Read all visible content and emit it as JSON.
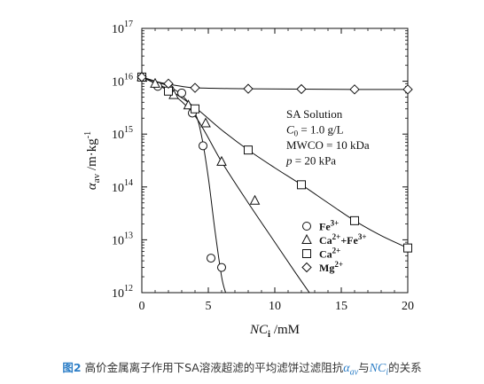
{
  "chart_data": {
    "type": "scatter",
    "xlabel": {
      "main": "NC",
      "sub": "i",
      "unit": " /mM"
    },
    "ylabel": {
      "main": "α",
      "sub": "av",
      "unit": " /m·kg",
      "sup": "-1"
    },
    "xlim": [
      0,
      20
    ],
    "ylim": [
      1000000000000.0,
      1e+17
    ],
    "yscale": "log",
    "x_ticks": [
      0,
      5,
      10,
      15,
      20
    ],
    "x_tick_labels": [
      "0",
      "5",
      "10",
      "15",
      "20"
    ],
    "y_ticks": [
      12,
      13,
      14,
      15,
      16,
      17
    ],
    "grid": false,
    "legend_position": "bottom-right",
    "annotation": [
      {
        "text": "SA Solution"
      },
      {
        "pre": "",
        "italic": "C",
        "sub": "0",
        "post": " = 1.0 g/L"
      },
      {
        "text": "MWCO = 10 kDa"
      },
      {
        "pre": "",
        "italic": "p",
        "sub": "",
        "post": " = 20 kPa"
      }
    ],
    "series": [
      {
        "name_parts": [
          [
            "Fe",
            ""
          ],
          [
            "3+",
            "sup"
          ]
        ],
        "marker": "circle",
        "x": [
          0,
          1.2,
          2.1,
          3.0,
          3.8,
          4.6,
          5.2,
          6.0
        ],
        "y": [
          1.2e+16,
          8000000000000000.0,
          7000000000000000.0,
          6000000000000000.0,
          2500000000000000.0,
          600000000000000.0,
          4500000000000.0,
          3000000000000.0
        ],
        "curve_x": [
          0,
          1,
          2,
          3,
          4,
          4.5,
          5,
          5.5,
          6.0,
          6.3
        ],
        "curve_y": [
          1.2e+16,
          1e+16,
          8000000000000000.0,
          5500000000000000.0,
          2500000000000000.0,
          900000000000000.0,
          150000000000000.0,
          15000000000000.0,
          2000000000000.0,
          1000000000000.0
        ]
      },
      {
        "name_parts": [
          [
            "Ca",
            ""
          ],
          [
            "2+",
            "sup"
          ],
          [
            "+Fe",
            ""
          ],
          [
            "3+",
            "sup"
          ]
        ],
        "marker": "triangle",
        "x": [
          0,
          1.0,
          2.4,
          3.5,
          4.8,
          6.0,
          8.5
        ],
        "y": [
          1.2e+16,
          9000000000000000.0,
          5500000000000000.0,
          3500000000000000.0,
          1600000000000000.0,
          300000000000000.0,
          55000000000000.0
        ],
        "curve_x": [
          0,
          2,
          4,
          6,
          8,
          10,
          11.5,
          12.6
        ],
        "curve_y": [
          1.2e+16,
          6500000000000000.0,
          2200000000000000.0,
          300000000000000.0,
          50000000000000.0,
          9000000000000.0,
          2500000000000.0,
          1000000000000.0
        ]
      },
      {
        "name_parts": [
          [
            "Ca",
            ""
          ],
          [
            "2+",
            "sup"
          ]
        ],
        "marker": "square",
        "x": [
          0,
          2.0,
          4.0,
          8.0,
          12.0,
          16.0,
          20.0
        ],
        "y": [
          1.2e+16,
          6500000000000000.0,
          3000000000000000.0,
          500000000000000.0,
          110000000000000.0,
          23000000000000.0,
          7000000000000.0
        ],
        "curve_x": [
          0,
          2,
          4,
          6,
          8,
          10,
          12,
          14,
          16,
          18,
          20
        ],
        "curve_y": [
          1.2e+16,
          7000000000000000.0,
          3200000000000000.0,
          1200000000000000.0,
          500000000000000.0,
          230000000000000.0,
          110000000000000.0,
          50000000000000.0,
          23000000000000.0,
          12000000000000.0,
          7000000000000.0
        ]
      },
      {
        "name_parts": [
          [
            "Mg",
            ""
          ],
          [
            "2+",
            "sup"
          ]
        ],
        "marker": "diamond",
        "x": [
          0,
          2.0,
          4.0,
          8.0,
          12.0,
          16.0,
          20.0
        ],
        "y": [
          1.2e+16,
          9000000000000000.0,
          7500000000000000.0,
          7200000000000000.0,
          7100000000000000.0,
          7000000000000000.0,
          7000000000000000.0
        ],
        "curve_x": [
          0,
          1,
          2,
          3,
          4,
          6,
          8,
          12,
          16,
          20
        ],
        "curve_y": [
          1.2e+16,
          1e+16,
          8800000000000000.0,
          8000000000000000.0,
          7500000000000000.0,
          7300000000000000.0,
          7200000000000000.0,
          7100000000000000.0,
          7000000000000000.0,
          7000000000000000.0
        ]
      }
    ]
  },
  "caption": {
    "fig_label": "图2",
    "text_before": " 高价金属离子作用下SA溶液超滤的平均滤饼过滤阻抗",
    "alpha_sym": "α",
    "alpha_sub": "av",
    "text_mid": "与",
    "nc_sym": "NC",
    "nc_sub": "i",
    "text_after": "的关系"
  },
  "colors": {
    "caption_accent": "#2e7fc7",
    "ink": "#111111"
  }
}
